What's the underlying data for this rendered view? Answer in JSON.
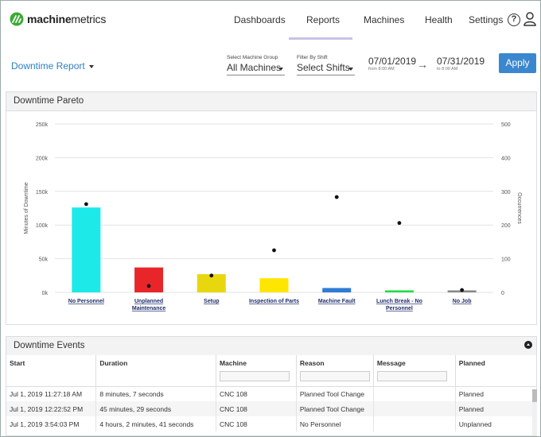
{
  "brand": {
    "name_bold": "machine",
    "name_rest": "metrics"
  },
  "nav": {
    "items": [
      "Dashboards",
      "Reports",
      "Machines",
      "Health",
      "Settings"
    ],
    "active": "Reports",
    "help_glyph": "?"
  },
  "filters": {
    "report_title": "Downtime Report",
    "machine_group_label": "Select Machine Group",
    "machine_group_value": "All Machines",
    "shift_label": "Filter By Shift",
    "shift_value": "Select Shifts",
    "start_date": "07/01/2019",
    "start_sub": "from 8:00 AM",
    "end_date": "07/31/2019",
    "end_sub": "to 8:00 AM",
    "apply_label": "Apply"
  },
  "pareto_panel": {
    "title": "Downtime Pareto"
  },
  "chart_data": {
    "type": "bar",
    "title": "",
    "ylabel": "Minutes of Downtime",
    "y2label": "Occurrences",
    "ylim": [
      0,
      250000
    ],
    "y2lim": [
      0,
      500
    ],
    "y_ticks": [
      "0k",
      "50k",
      "100k",
      "150k",
      "200k",
      "250k"
    ],
    "y2_ticks": [
      "0",
      "100",
      "200",
      "300",
      "400",
      "500"
    ],
    "categories": [
      "No Personnel",
      "Unplanned Maintenance",
      "Setup",
      "Inspection of Parts",
      "Machine Fault",
      "Lunch Break - No Personnel",
      "No Job"
    ],
    "category_lines": [
      [
        "No Personnel"
      ],
      [
        "Unplanned",
        "Maintenance"
      ],
      [
        "Setup"
      ],
      [
        "Inspection of Parts"
      ],
      [
        "Machine Fault"
      ],
      [
        "Lunch Break - No",
        "Personnel"
      ],
      [
        "No Job"
      ]
    ],
    "series": [
      {
        "name": "Minutes of Downtime",
        "values": [
          126000,
          37000,
          27000,
          21000,
          6500,
          3000,
          3000
        ],
        "colors": [
          "#1de9e9",
          "#e8262a",
          "#e8d70f",
          "#ffe600",
          "#2f7cd6",
          "#22dd44",
          "#888888"
        ]
      },
      {
        "name": "Occurrences",
        "type": "scatter",
        "values": [
          262,
          19,
          50,
          125,
          283,
          206,
          7
        ]
      }
    ],
    "grid": true
  },
  "events_panel": {
    "title": "Downtime Events",
    "columns": [
      "Start",
      "Duration",
      "Machine",
      "Reason",
      "Message",
      "Planned"
    ],
    "rows": [
      [
        "Jul 1, 2019 11:27:18 AM",
        "8 minutes, 7 seconds",
        "CNC 108",
        "Planned Tool Change",
        "",
        "Planned"
      ],
      [
        "Jul 1, 2019 12:22:52 PM",
        "45 minutes, 29 seconds",
        "CNC 108",
        "Planned Tool Change",
        "",
        "Planned"
      ],
      [
        "Jul 1, 2019 3:54:03 PM",
        "4 hours, 2 minutes, 41 seconds",
        "CNC 108",
        "No Personnel",
        "",
        "Unplanned"
      ]
    ]
  }
}
